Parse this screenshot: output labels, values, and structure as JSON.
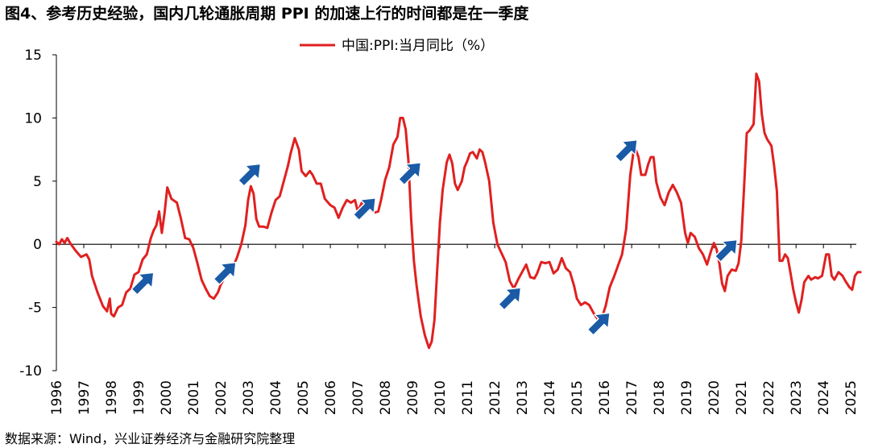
{
  "title": "图4、参考历史经验，国内几轮通胀周期 PPI 的加速上行的时间都是在一季度",
  "source": "数据来源：Wind，兴业证券经济与金融研究院整理",
  "chart_data": {
    "type": "line",
    "title": "图4、参考历史经验，国内几轮通胀周期 PPI 的加速上行的时间都是在一季度",
    "xlabel": "",
    "ylabel": "",
    "xlim": [
      1996,
      2025.2
    ],
    "ylim": [
      -10,
      15
    ],
    "yticks": [
      -10,
      -5,
      0,
      5,
      10,
      15
    ],
    "xticks": [
      "1996",
      "1997",
      "1998",
      "1999",
      "2000",
      "2001",
      "2002",
      "2003",
      "2004",
      "2005",
      "2006",
      "2007",
      "2008",
      "2009",
      "2010",
      "2011",
      "2012",
      "2013",
      "2014",
      "2015",
      "2016",
      "2017",
      "2018",
      "2019",
      "2020",
      "2021",
      "2022",
      "2023",
      "2024",
      "2025"
    ],
    "legend_position": "top-center",
    "series": [
      {
        "name": "中国:PPI:当月同比（%）",
        "color": "#e02020",
        "points": [
          [
            1996.0,
            0.2
          ],
          [
            1996.1,
            0.0
          ],
          [
            1996.2,
            0.4
          ],
          [
            1996.3,
            0.1
          ],
          [
            1996.4,
            0.5
          ],
          [
            1996.5,
            0.1
          ],
          [
            1996.7,
            -0.5
          ],
          [
            1996.9,
            -1.0
          ],
          [
            1997.1,
            -0.8
          ],
          [
            1997.2,
            -1.2
          ],
          [
            1997.3,
            -2.5
          ],
          [
            1997.5,
            -3.8
          ],
          [
            1997.7,
            -4.9
          ],
          [
            1997.85,
            -5.3
          ],
          [
            1997.95,
            -4.3
          ],
          [
            1998.0,
            -5.5
          ],
          [
            1998.1,
            -5.7
          ],
          [
            1998.25,
            -5.0
          ],
          [
            1998.4,
            -4.8
          ],
          [
            1998.55,
            -3.8
          ],
          [
            1998.7,
            -3.5
          ],
          [
            1998.85,
            -2.4
          ],
          [
            1999.0,
            -2.2
          ],
          [
            1999.15,
            -1.2
          ],
          [
            1999.3,
            -0.8
          ],
          [
            1999.45,
            0.5
          ],
          [
            1999.55,
            1.1
          ],
          [
            1999.65,
            1.5
          ],
          [
            1999.75,
            2.6
          ],
          [
            1999.85,
            0.9
          ],
          [
            1999.95,
            2.5
          ],
          [
            2000.05,
            4.5
          ],
          [
            2000.2,
            3.6
          ],
          [
            2000.4,
            3.3
          ],
          [
            2000.55,
            2.0
          ],
          [
            2000.7,
            0.5
          ],
          [
            2000.85,
            0.4
          ],
          [
            2001.0,
            -0.3
          ],
          [
            2001.15,
            -1.5
          ],
          [
            2001.3,
            -2.8
          ],
          [
            2001.45,
            -3.5
          ],
          [
            2001.6,
            -4.1
          ],
          [
            2001.75,
            -4.3
          ],
          [
            2001.9,
            -3.8
          ],
          [
            2002.0,
            -3.2
          ],
          [
            2002.15,
            -2.6
          ],
          [
            2002.3,
            -2.4
          ],
          [
            2002.45,
            -1.8
          ],
          [
            2002.6,
            -1.0
          ],
          [
            2002.75,
            0.0
          ],
          [
            2002.9,
            1.5
          ],
          [
            2003.0,
            3.5
          ],
          [
            2003.1,
            4.6
          ],
          [
            2003.2,
            4.0
          ],
          [
            2003.3,
            2.0
          ],
          [
            2003.4,
            1.4
          ],
          [
            2003.55,
            1.4
          ],
          [
            2003.7,
            1.3
          ],
          [
            2003.85,
            2.5
          ],
          [
            2004.0,
            3.5
          ],
          [
            2004.15,
            3.8
          ],
          [
            2004.3,
            5.0
          ],
          [
            2004.45,
            6.2
          ],
          [
            2004.55,
            7.2
          ],
          [
            2004.7,
            8.4
          ],
          [
            2004.85,
            7.5
          ],
          [
            2004.95,
            5.8
          ],
          [
            2005.1,
            5.4
          ],
          [
            2005.25,
            5.8
          ],
          [
            2005.35,
            5.5
          ],
          [
            2005.5,
            4.8
          ],
          [
            2005.65,
            4.8
          ],
          [
            2005.8,
            3.6
          ],
          [
            2006.0,
            3.1
          ],
          [
            2006.15,
            2.9
          ],
          [
            2006.3,
            2.1
          ],
          [
            2006.45,
            2.9
          ],
          [
            2006.6,
            3.5
          ],
          [
            2006.75,
            3.3
          ],
          [
            2006.9,
            3.5
          ],
          [
            2007.0,
            2.6
          ],
          [
            2007.15,
            3.3
          ],
          [
            2007.3,
            2.6
          ],
          [
            2007.45,
            2.8
          ],
          [
            2007.6,
            2.5
          ],
          [
            2007.75,
            2.6
          ],
          [
            2007.85,
            3.5
          ],
          [
            2008.0,
            5.1
          ],
          [
            2008.15,
            6.1
          ],
          [
            2008.3,
            7.9
          ],
          [
            2008.45,
            8.5
          ],
          [
            2008.55,
            10.0
          ],
          [
            2008.65,
            10.0
          ],
          [
            2008.75,
            9.1
          ],
          [
            2008.85,
            6.6
          ],
          [
            2008.95,
            2.0
          ],
          [
            2009.05,
            -1.3
          ],
          [
            2009.15,
            -3.3
          ],
          [
            2009.3,
            -5.7
          ],
          [
            2009.45,
            -7.2
          ],
          [
            2009.6,
            -8.2
          ],
          [
            2009.7,
            -7.7
          ],
          [
            2009.8,
            -6.0
          ],
          [
            2009.9,
            -2.1
          ],
          [
            2010.0,
            1.7
          ],
          [
            2010.1,
            4.3
          ],
          [
            2010.25,
            6.5
          ],
          [
            2010.35,
            7.1
          ],
          [
            2010.45,
            6.4
          ],
          [
            2010.55,
            4.8
          ],
          [
            2010.65,
            4.3
          ],
          [
            2010.8,
            5.0
          ],
          [
            2010.9,
            6.1
          ],
          [
            2011.0,
            6.6
          ],
          [
            2011.1,
            7.2
          ],
          [
            2011.2,
            7.3
          ],
          [
            2011.35,
            6.8
          ],
          [
            2011.45,
            7.5
          ],
          [
            2011.55,
            7.3
          ],
          [
            2011.65,
            6.5
          ],
          [
            2011.8,
            5.0
          ],
          [
            2011.95,
            1.7
          ],
          [
            2012.1,
            0.0
          ],
          [
            2012.25,
            -0.7
          ],
          [
            2012.4,
            -1.4
          ],
          [
            2012.55,
            -2.9
          ],
          [
            2012.7,
            -3.5
          ],
          [
            2012.85,
            -2.8
          ],
          [
            2013.0,
            -2.2
          ],
          [
            2013.15,
            -1.6
          ],
          [
            2013.3,
            -2.6
          ],
          [
            2013.45,
            -2.7
          ],
          [
            2013.55,
            -2.3
          ],
          [
            2013.7,
            -1.4
          ],
          [
            2013.85,
            -1.5
          ],
          [
            2014.0,
            -1.4
          ],
          [
            2014.15,
            -2.3
          ],
          [
            2014.3,
            -2.0
          ],
          [
            2014.45,
            -1.1
          ],
          [
            2014.6,
            -1.9
          ],
          [
            2014.75,
            -2.2
          ],
          [
            2014.9,
            -3.3
          ],
          [
            2015.0,
            -4.3
          ],
          [
            2015.15,
            -4.8
          ],
          [
            2015.3,
            -4.6
          ],
          [
            2015.45,
            -4.8
          ],
          [
            2015.6,
            -5.4
          ],
          [
            2015.75,
            -5.9
          ],
          [
            2015.9,
            -5.9
          ],
          [
            2016.05,
            -4.9
          ],
          [
            2016.2,
            -3.4
          ],
          [
            2016.35,
            -2.6
          ],
          [
            2016.5,
            -1.7
          ],
          [
            2016.65,
            -0.8
          ],
          [
            2016.8,
            1.2
          ],
          [
            2016.95,
            5.5
          ],
          [
            2017.1,
            7.8
          ],
          [
            2017.25,
            6.9
          ],
          [
            2017.35,
            5.5
          ],
          [
            2017.5,
            5.5
          ],
          [
            2017.6,
            6.3
          ],
          [
            2017.7,
            6.9
          ],
          [
            2017.8,
            6.9
          ],
          [
            2017.9,
            4.9
          ],
          [
            2018.05,
            3.7
          ],
          [
            2018.2,
            3.1
          ],
          [
            2018.35,
            4.1
          ],
          [
            2018.5,
            4.7
          ],
          [
            2018.65,
            4.1
          ],
          [
            2018.8,
            3.3
          ],
          [
            2018.95,
            0.9
          ],
          [
            2019.05,
            0.1
          ],
          [
            2019.15,
            0.9
          ],
          [
            2019.3,
            0.6
          ],
          [
            2019.45,
            -0.3
          ],
          [
            2019.6,
            -0.8
          ],
          [
            2019.75,
            -1.6
          ],
          [
            2019.9,
            -0.5
          ],
          [
            2020.0,
            0.1
          ],
          [
            2020.1,
            -0.4
          ],
          [
            2020.2,
            -1.5
          ],
          [
            2020.3,
            -3.1
          ],
          [
            2020.4,
            -3.7
          ],
          [
            2020.5,
            -2.5
          ],
          [
            2020.65,
            -2.0
          ],
          [
            2020.8,
            -2.1
          ],
          [
            2020.9,
            -1.5
          ],
          [
            2021.0,
            0.3
          ],
          [
            2021.1,
            4.4
          ],
          [
            2021.2,
            8.8
          ],
          [
            2021.3,
            9.0
          ],
          [
            2021.45,
            9.5
          ],
          [
            2021.55,
            13.5
          ],
          [
            2021.65,
            12.9
          ],
          [
            2021.75,
            10.3
          ],
          [
            2021.85,
            8.8
          ],
          [
            2021.95,
            8.3
          ],
          [
            2022.1,
            7.8
          ],
          [
            2022.2,
            6.2
          ],
          [
            2022.3,
            4.2
          ],
          [
            2022.4,
            -1.3
          ],
          [
            2022.5,
            -1.3
          ],
          [
            2022.6,
            -0.8
          ],
          [
            2022.7,
            -1.1
          ],
          [
            2022.8,
            -2.3
          ],
          [
            2022.9,
            -3.6
          ],
          [
            2023.0,
            -4.6
          ],
          [
            2023.1,
            -5.4
          ],
          [
            2023.2,
            -4.4
          ],
          [
            2023.3,
            -3.0
          ],
          [
            2023.45,
            -2.5
          ],
          [
            2023.55,
            -2.8
          ],
          [
            2023.7,
            -2.6
          ],
          [
            2023.8,
            -2.7
          ],
          [
            2023.95,
            -2.5
          ],
          [
            2024.1,
            -0.8
          ],
          [
            2024.2,
            -0.8
          ],
          [
            2024.3,
            -2.5
          ],
          [
            2024.4,
            -2.8
          ],
          [
            2024.55,
            -2.2
          ],
          [
            2024.7,
            -2.5
          ],
          [
            2024.8,
            -2.9
          ],
          [
            2024.95,
            -3.4
          ],
          [
            2025.05,
            -3.6
          ],
          [
            2025.15,
            -2.5
          ],
          [
            2025.25,
            -2.2
          ],
          [
            2025.35,
            -2.2
          ]
        ]
      }
    ],
    "annotations": [
      {
        "type": "arrow",
        "x": 1999.2,
        "y": -3.0,
        "color": "#1a5aa6"
      },
      {
        "type": "arrow",
        "x": 2002.2,
        "y": -2.2,
        "color": "#1a5aa6"
      },
      {
        "type": "arrow",
        "x": 2003.1,
        "y": 5.6,
        "color": "#1a5aa6"
      },
      {
        "type": "arrow",
        "x": 2007.3,
        "y": 2.9,
        "color": "#1a5aa6"
      },
      {
        "type": "arrow",
        "x": 2008.95,
        "y": 5.7,
        "color": "#1a5aa6"
      },
      {
        "type": "arrow",
        "x": 2012.6,
        "y": -4.2,
        "color": "#1a5aa6"
      },
      {
        "type": "arrow",
        "x": 2015.85,
        "y": -6.2,
        "color": "#1a5aa6"
      },
      {
        "type": "arrow",
        "x": 2016.85,
        "y": 7.5,
        "color": "#1a5aa6"
      },
      {
        "type": "arrow",
        "x": 2020.5,
        "y": -0.4,
        "color": "#1a5aa6"
      }
    ]
  }
}
